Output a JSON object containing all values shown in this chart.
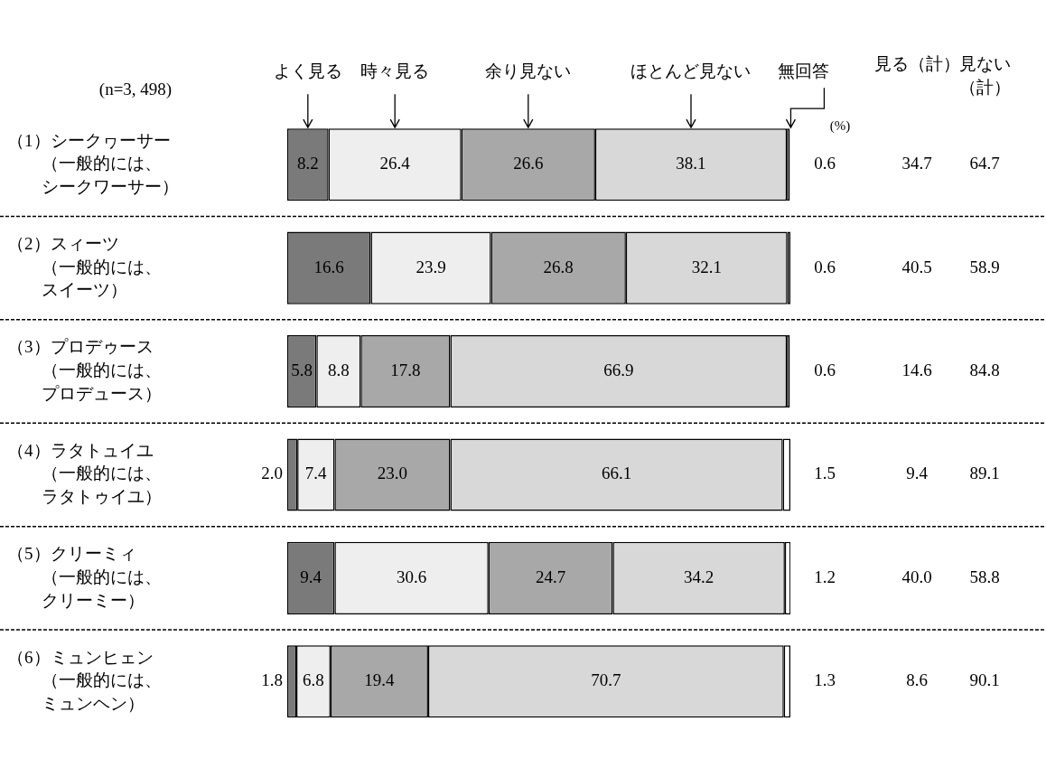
{
  "chart_data": {
    "type": "bar",
    "orientation": "horizontal",
    "stacked": true,
    "legend": false,
    "tick_labels": "y",
    "xlim": [
      0,
      100
    ],
    "categories": [
      "（1）シークヮーサー（一般的には、シークワーサー）",
      "（2）スィーツ（一般的には、スイーツ）",
      "（3）プロデゥース（一般的には、プロデュース）",
      "（4）ラタトュイユ（一般的には、ラタトゥイユ）",
      "（5）クリーミィ（一般的には、クリーミー）",
      "（6）ミュンヒェン（一般的には、ミュンヘン）"
    ],
    "series": [
      {
        "name": "よく見る",
        "color": "#7a7a7a",
        "values": [
          8.2,
          16.6,
          5.8,
          2.0,
          9.4,
          1.8
        ],
        "value_labels": [
          "8.2",
          "16.6",
          "5.8",
          "2.0",
          "9.4",
          "1.8"
        ]
      },
      {
        "name": "時々見る",
        "color": "#eeeeee",
        "values": [
          26.4,
          23.9,
          8.8,
          7.4,
          30.6,
          6.8
        ],
        "value_labels": [
          "26.4",
          "23.9",
          "8.8",
          "7.4",
          "30.6",
          "6.8"
        ]
      },
      {
        "name": "余り見ない",
        "color": "#a8a8a8",
        "values": [
          26.6,
          26.8,
          17.8,
          23.0,
          24.7,
          19.4
        ],
        "value_labels": [
          "26.6",
          "26.8",
          "17.8",
          "23.0",
          "24.7",
          "19.4"
        ]
      },
      {
        "name": "ほとんど見ない",
        "color": "#d8d8d8",
        "values": [
          38.1,
          32.1,
          66.9,
          66.1,
          34.2,
          70.7
        ],
        "value_labels": [
          "38.1",
          "32.1",
          "66.9",
          "66.1",
          "34.2",
          "70.7"
        ]
      },
      {
        "name": "無回答",
        "color": "#ffffff",
        "values": [
          0.6,
          0.6,
          0.6,
          1.5,
          1.2,
          1.3
        ],
        "value_labels": [
          "0.6",
          "0.6",
          "0.6",
          "1.5",
          "1.2",
          "1.3"
        ]
      }
    ],
    "annotations": [
      "(n=3, 498)",
      "(%)",
      "見る（計）",
      "見ない（計）",
      "34.7",
      "64.7",
      "40.5",
      "58.9",
      "14.6",
      "84.8",
      "9.4",
      "89.1",
      "40.0",
      "58.8",
      "8.6",
      "90.1"
    ]
  }
}
